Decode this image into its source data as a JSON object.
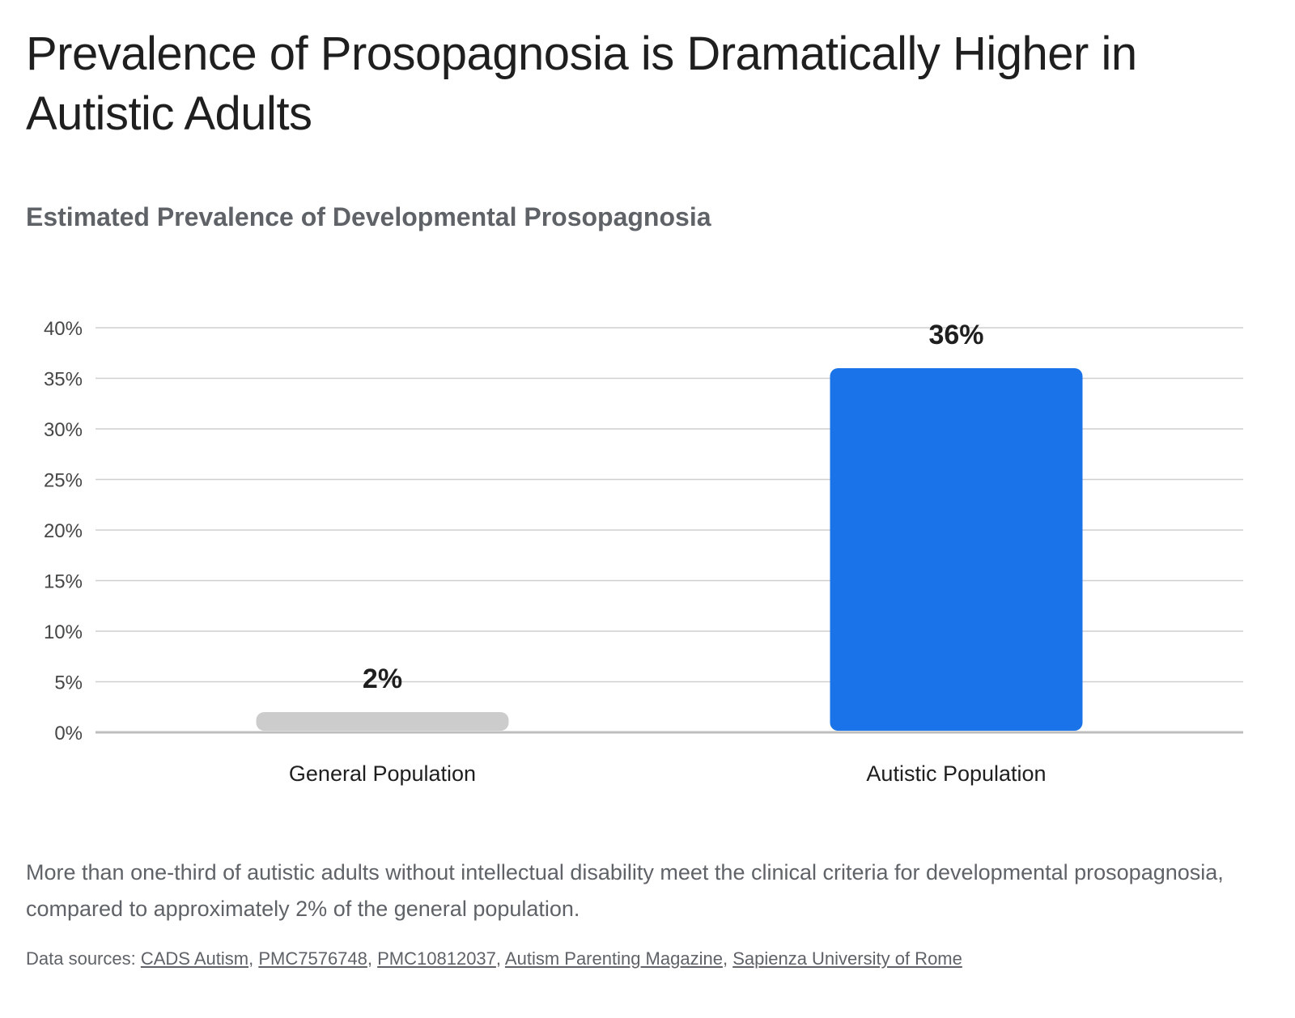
{
  "title": "Prevalence of Prosopagnosia is Dramatically Higher in Autistic Adults",
  "subtitle": "Estimated Prevalence of Developmental Prosopagnosia",
  "caption": "More than one-third of autistic adults without intellectual disability meet the clinical criteria for developmental prosopagnosia, compared to approximately 2% of the general population.",
  "sources": {
    "prefix": "Data sources: ",
    "links": [
      "CADS Autism",
      "PMC7576748",
      "PMC10812037",
      "Autism Parenting Magazine",
      "Sapienza University of Rome"
    ]
  },
  "chart_data": {
    "type": "bar",
    "categories": [
      "General Population",
      "Autistic Population"
    ],
    "values": [
      2,
      36
    ],
    "data_labels": [
      "2%",
      "36%"
    ],
    "colors": [
      "#cccccc",
      "#1a73e8"
    ],
    "ylim": [
      0,
      40
    ],
    "yticks": [
      0,
      5,
      10,
      15,
      20,
      25,
      30,
      35,
      40
    ],
    "ytick_labels": [
      "0%",
      "5%",
      "10%",
      "15%",
      "20%",
      "25%",
      "30%",
      "35%",
      "40%"
    ],
    "xlabel": "",
    "ylabel": "",
    "grid": true,
    "legend": "none"
  }
}
